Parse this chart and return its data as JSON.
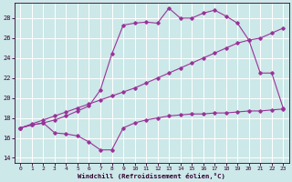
{
  "background_color": "#cce8e8",
  "grid_color": "#ffffff",
  "line_color": "#993399",
  "xlabel": "Windchill (Refroidissement éolien,°C)",
  "xlim": [
    -0.5,
    23.5
  ],
  "ylim": [
    13.5,
    29.5
  ],
  "yticks": [
    14,
    16,
    18,
    20,
    22,
    24,
    26,
    28
  ],
  "xticks": [
    0,
    1,
    2,
    3,
    4,
    5,
    6,
    7,
    8,
    9,
    10,
    11,
    12,
    13,
    14,
    15,
    16,
    17,
    18,
    19,
    20,
    21,
    22,
    23
  ],
  "curve_diag_x": [
    0,
    1,
    2,
    3,
    4,
    5,
    6,
    7,
    8,
    9,
    10,
    11,
    12,
    13,
    14,
    15,
    16,
    17,
    18,
    19,
    20,
    21,
    22,
    23
  ],
  "curve_diag_y": [
    17.0,
    17.4,
    17.8,
    18.2,
    18.6,
    19.0,
    19.4,
    19.8,
    20.2,
    20.6,
    21.0,
    21.5,
    22.0,
    22.5,
    23.0,
    23.5,
    24.0,
    24.5,
    25.0,
    25.5,
    25.8,
    26.0,
    26.5,
    27.0
  ],
  "curve_dip_x": [
    0,
    1,
    2,
    3,
    4,
    5,
    6,
    7,
    8,
    9,
    10,
    11,
    12,
    13,
    14,
    15,
    16,
    17,
    18,
    19,
    20,
    21,
    22,
    23
  ],
  "curve_dip_y": [
    17.0,
    17.3,
    17.5,
    16.5,
    16.4,
    16.2,
    15.6,
    14.8,
    14.8,
    17.0,
    17.5,
    17.8,
    18.0,
    18.2,
    18.3,
    18.4,
    18.4,
    18.5,
    18.5,
    18.6,
    18.7,
    18.7,
    18.8,
    18.9
  ],
  "curve_peak_x": [
    0,
    1,
    2,
    3,
    4,
    5,
    6,
    7,
    8,
    9,
    10,
    11,
    12,
    13,
    14,
    15,
    16,
    17,
    18,
    19,
    20,
    21,
    22,
    23
  ],
  "curve_peak_y": [
    17.0,
    17.3,
    17.5,
    17.8,
    18.2,
    18.7,
    19.2,
    20.8,
    24.4,
    27.3,
    27.5,
    27.6,
    27.5,
    29.0,
    28.0,
    28.0,
    28.5,
    28.8,
    28.2,
    27.5,
    25.8,
    22.5,
    22.5,
    19.0
  ]
}
